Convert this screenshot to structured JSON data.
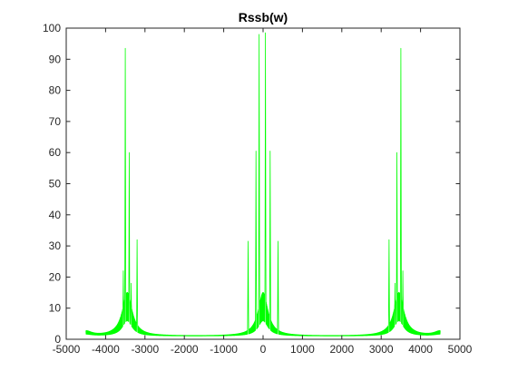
{
  "chart_data": {
    "type": "line",
    "title": "Rssb(w)",
    "xlabel": "",
    "ylabel": "",
    "xlim": [
      -5000,
      5000
    ],
    "ylim": [
      0,
      100
    ],
    "xticks": [
      -5000,
      -4000,
      -3000,
      -2000,
      -1000,
      0,
      1000,
      2000,
      3000,
      4000,
      5000
    ],
    "yticks": [
      0,
      10,
      20,
      30,
      40,
      50,
      60,
      70,
      80,
      90,
      100
    ],
    "xtick_labels": [
      "-5000",
      "-4000",
      "-3000",
      "-2000",
      "-1000",
      "0",
      "1000",
      "2000",
      "3000",
      "4000",
      "5000"
    ],
    "ytick_labels": [
      "0",
      "10",
      "20",
      "30",
      "40",
      "50",
      "60",
      "70",
      "80",
      "90",
      "100"
    ],
    "grid": false,
    "series": [
      {
        "color": "#00ff00",
        "x_range": [
          -4500,
          4500
        ],
        "samples": 1800,
        "peaks": [
          {
            "x": -3500,
            "y": 93.5
          },
          {
            "x": -3400,
            "y": 60
          },
          {
            "x": -3200,
            "y": 32
          },
          {
            "x": -3550,
            "y": 22
          },
          {
            "x": -3350,
            "y": 18
          },
          {
            "x": -180,
            "y": 60.5
          },
          {
            "x": -100,
            "y": 98
          },
          {
            "x": 60,
            "y": 98.5
          },
          {
            "x": 180,
            "y": 60.5
          },
          {
            "x": -380,
            "y": 31.5
          },
          {
            "x": 380,
            "y": 31.5
          },
          {
            "x": 3200,
            "y": 32
          },
          {
            "x": 3400,
            "y": 60
          },
          {
            "x": 3500,
            "y": 93.5
          },
          {
            "x": 3350,
            "y": 18
          },
          {
            "x": 3550,
            "y": 22
          }
        ],
        "baseline_min": 1,
        "edge_level": 2.5
      }
    ]
  }
}
